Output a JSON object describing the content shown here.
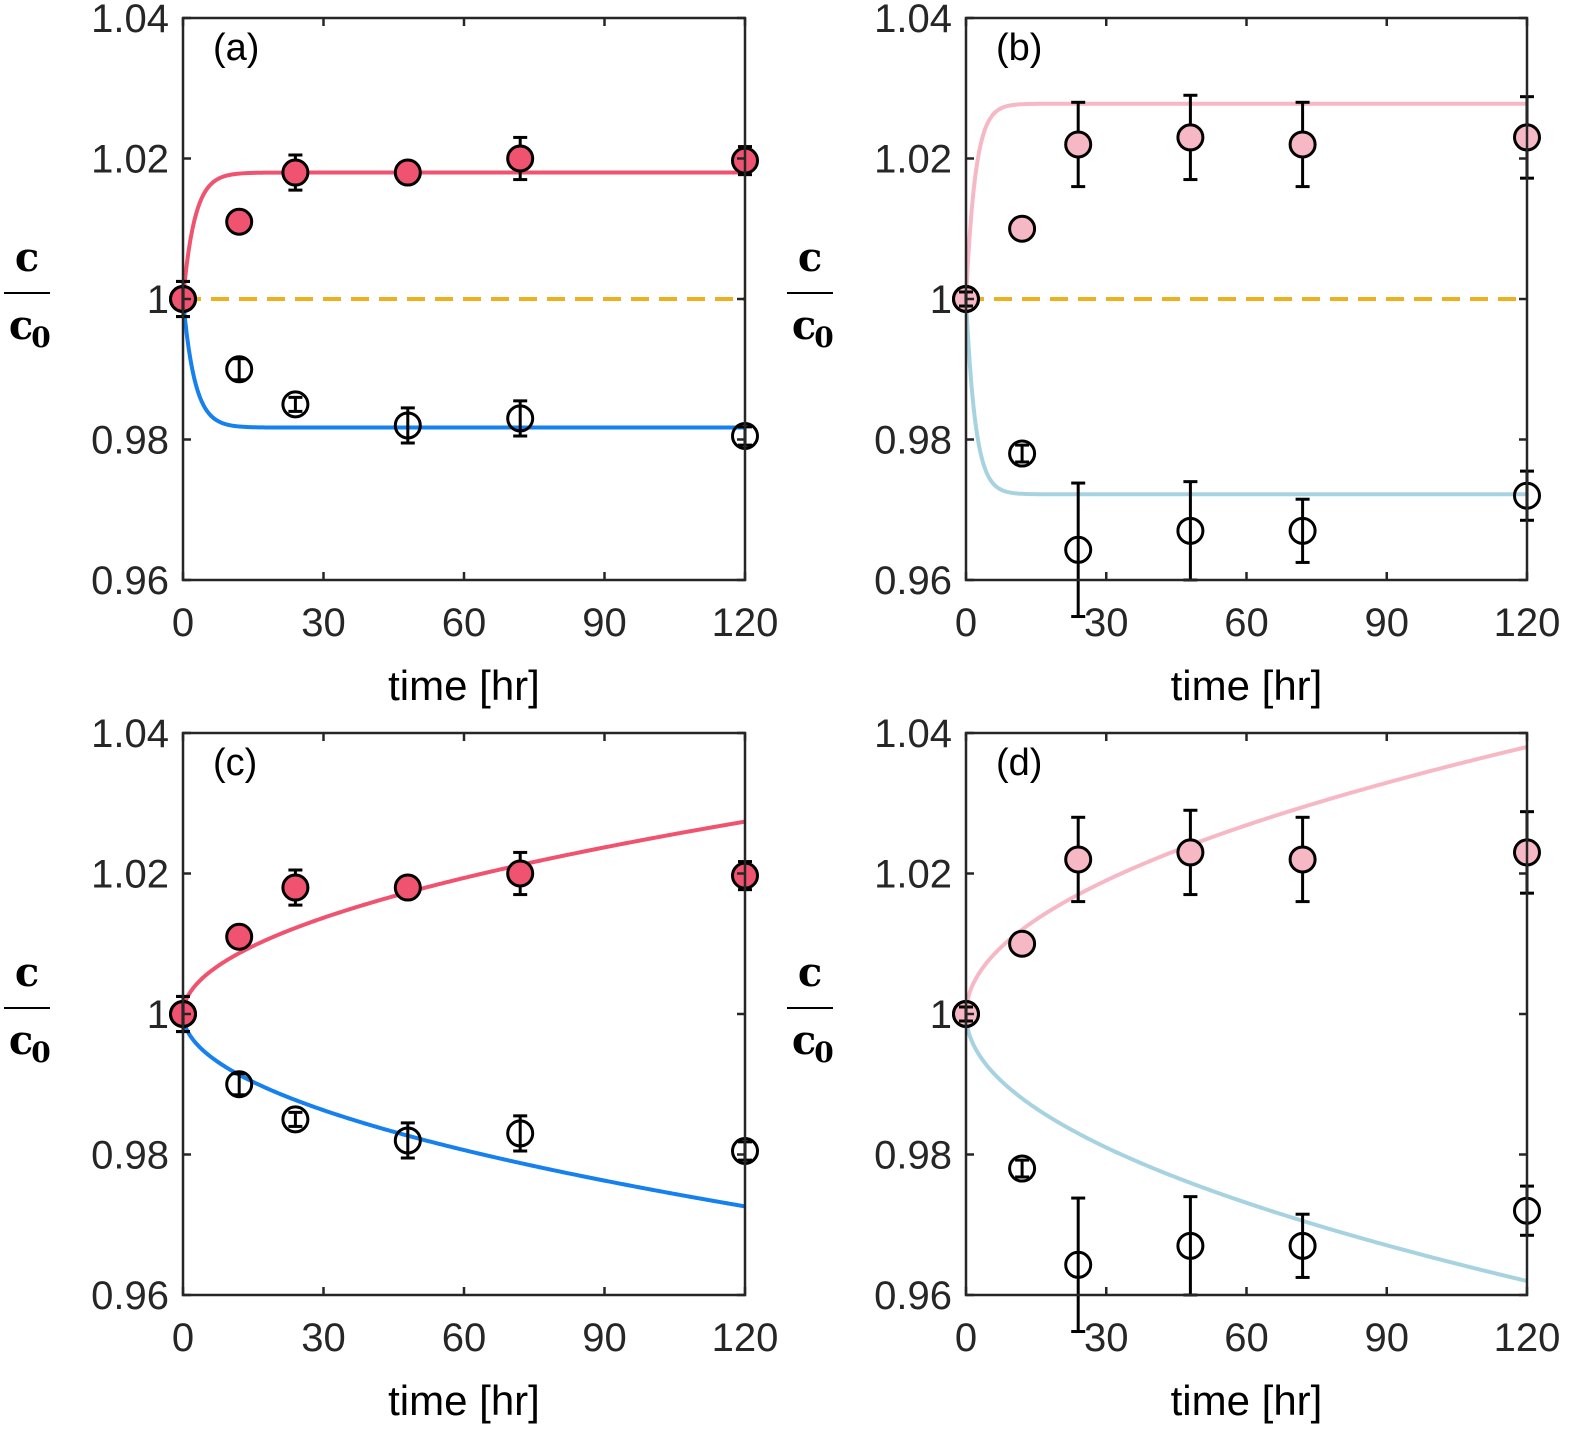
{
  "chart_data": [
    {
      "type": "scatter",
      "panel": "(a)",
      "xlabel": "time [hr]",
      "ylabel": {
        "numerator": "c",
        "denominator": "c",
        "subscript": "0"
      },
      "xlim": [
        0,
        120
      ],
      "ylim": [
        0.96,
        1.04
      ],
      "xticks": [
        0,
        30,
        60,
        90,
        120
      ],
      "yticks": [
        "0.96",
        "0.98",
        "1",
        "1.02",
        "1.04"
      ],
      "grid": false,
      "reference_line": {
        "y": 1.0,
        "color": "#EDB120",
        "style": "dashed"
      },
      "series": [
        {
          "name": "filled",
          "filled": true,
          "fill": "#F0536F",
          "x": [
            0,
            12,
            24,
            48,
            72,
            120
          ],
          "y": [
            1.0,
            1.011,
            1.018,
            1.018,
            1.02,
            1.0197
          ],
          "err": [
            0.0025,
            0.001,
            0.0025,
            0.0013,
            0.003,
            0.002
          ]
        },
        {
          "name": "open",
          "filled": false,
          "fill": "none",
          "x": [
            0,
            12,
            24,
            48,
            72,
            120
          ],
          "y": [
            1.0,
            0.99,
            0.985,
            0.982,
            0.983,
            0.9805
          ],
          "err": [
            0.0025,
            0.0015,
            0.001,
            0.0025,
            0.0025,
            0.0013
          ]
        }
      ],
      "fits": [
        {
          "name": "upper-fit",
          "color": "#F0536F",
          "model": "saturating",
          "plateau": 1.018,
          "tau": 2.5
        },
        {
          "name": "lower-fit",
          "color": "#1680EE",
          "model": "saturating",
          "plateau": 0.9817,
          "tau": 2.5
        }
      ]
    },
    {
      "type": "scatter",
      "panel": "(b)",
      "xlabel": "time [hr]",
      "ylabel": {
        "numerator": "c",
        "denominator": "c",
        "subscript": "0"
      },
      "xlim": [
        0,
        120
      ],
      "ylim": [
        0.96,
        1.04
      ],
      "xticks": [
        0,
        30,
        60,
        90,
        120
      ],
      "yticks": [
        "0.96",
        "0.98",
        "1",
        "1.02",
        "1.04"
      ],
      "grid": false,
      "reference_line": {
        "y": 1.0,
        "color": "#EDB120",
        "style": "dashed"
      },
      "series": [
        {
          "name": "filled",
          "filled": true,
          "fill": "#F7B8C6",
          "x": [
            0,
            12,
            24,
            48,
            72,
            120
          ],
          "y": [
            1.0,
            1.01,
            1.022,
            1.023,
            1.022,
            1.023
          ],
          "err": [
            0.001,
            0.0008,
            0.006,
            0.006,
            0.006,
            0.0058
          ]
        },
        {
          "name": "open",
          "filled": false,
          "fill": "none",
          "x": [
            0,
            12,
            24,
            48,
            72,
            120
          ],
          "y": [
            1.0,
            0.978,
            0.9643,
            0.967,
            0.967,
            0.972
          ],
          "err": [
            0.001,
            0.0012,
            0.0095,
            0.007,
            0.0045,
            0.0035
          ]
        }
      ],
      "fits": [
        {
          "name": "upper-fit",
          "color": "#F7B8C6",
          "model": "saturating",
          "plateau": 1.0278,
          "tau": 2.0
        },
        {
          "name": "lower-fit",
          "color": "#A7D3E1",
          "model": "saturating",
          "plateau": 0.9722,
          "tau": 2.0
        }
      ]
    },
    {
      "type": "scatter",
      "panel": "(c)",
      "xlabel": "time [hr]",
      "ylabel": {
        "numerator": "c",
        "denominator": "c",
        "subscript": "0"
      },
      "xlim": [
        0,
        120
      ],
      "ylim": [
        0.96,
        1.04
      ],
      "xticks": [
        0,
        30,
        60,
        90,
        120
      ],
      "yticks": [
        "0.96",
        "0.98",
        "1",
        "1.02",
        "1.04"
      ],
      "grid": false,
      "series": [
        {
          "name": "filled",
          "filled": true,
          "fill": "#F0536F",
          "x": [
            0,
            12,
            24,
            48,
            72,
            120
          ],
          "y": [
            1.0,
            1.011,
            1.018,
            1.018,
            1.02,
            1.0197
          ],
          "err": [
            0.0025,
            0.001,
            0.0025,
            0.0013,
            0.003,
            0.002
          ]
        },
        {
          "name": "open",
          "filled": false,
          "fill": "none",
          "x": [
            0,
            12,
            24,
            48,
            72,
            120
          ],
          "y": [
            1.0,
            0.99,
            0.985,
            0.982,
            0.983,
            0.9805
          ],
          "err": [
            0.0025,
            0.0015,
            0.001,
            0.0025,
            0.0025,
            0.0013
          ]
        }
      ],
      "fits": [
        {
          "name": "upper-fit",
          "color": "#F0536F",
          "model": "sqrt",
          "amplitude": 0.0025
        },
        {
          "name": "lower-fit",
          "color": "#1680EE",
          "model": "sqrt",
          "amplitude": -0.0025
        }
      ]
    },
    {
      "type": "scatter",
      "panel": "(d)",
      "xlabel": "time [hr]",
      "ylabel": {
        "numerator": "c",
        "denominator": "c",
        "subscript": "0"
      },
      "xlim": [
        0,
        120
      ],
      "ylim": [
        0.96,
        1.04
      ],
      "xticks": [
        0,
        30,
        60,
        90,
        120
      ],
      "yticks": [
        "0.96",
        "0.98",
        "1",
        "1.02",
        "1.04"
      ],
      "grid": false,
      "series": [
        {
          "name": "filled",
          "filled": true,
          "fill": "#F7B8C6",
          "x": [
            0,
            12,
            24,
            48,
            72,
            120
          ],
          "y": [
            1.0,
            1.01,
            1.022,
            1.023,
            1.022,
            1.023
          ],
          "err": [
            0.001,
            0.0008,
            0.006,
            0.006,
            0.006,
            0.0058
          ]
        },
        {
          "name": "open",
          "filled": false,
          "fill": "none",
          "x": [
            0,
            12,
            24,
            48,
            72,
            120
          ],
          "y": [
            1.0,
            0.978,
            0.9643,
            0.967,
            0.967,
            0.972
          ],
          "err": [
            0.001,
            0.0012,
            0.0095,
            0.007,
            0.0045,
            0.0035
          ]
        }
      ],
      "fits": [
        {
          "name": "upper-fit",
          "color": "#F7B8C6",
          "model": "sqrt",
          "amplitude": 0.00347
        },
        {
          "name": "lower-fit",
          "color": "#A7D3E1",
          "model": "sqrt",
          "amplitude": -0.00347
        }
      ]
    }
  ]
}
